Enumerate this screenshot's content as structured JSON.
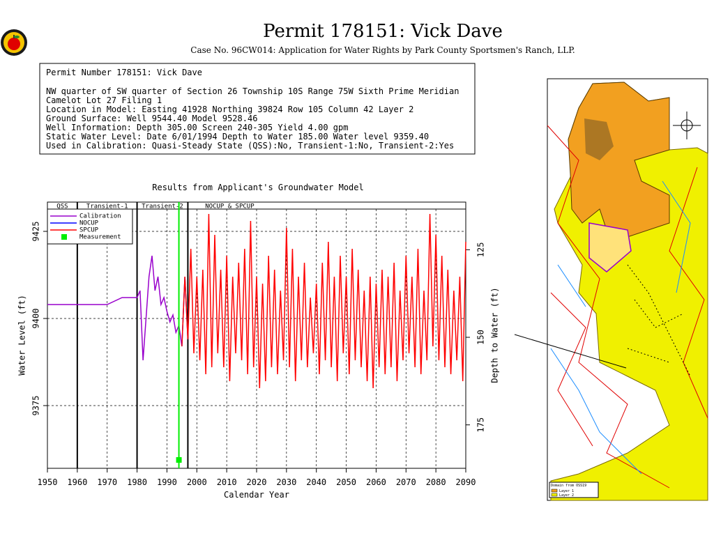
{
  "header": {
    "title": "Permit 178151:   Vick Dave",
    "subtitle": "Case No. 96CW014: Application for Water Rights by Park County Sportsmen's Ranch, LLP."
  },
  "info": {
    "lines": [
      "Permit Number 178151: Vick Dave",
      "NW quarter of SW quarter of Section 26 Township 10S Range 75W Sixth Prime Meridian",
      "Camelot Lot 27 Filing 1",
      "Location in Model: Easting 41928 Northing  39824 Row 105 Column 42 Layer 2",
      "Ground Surface: Well  9544.40 Model  9528.46",
      "Well Information: Depth   305.00 Screen 240-305 Yield     4.00 gpm",
      "Static Water Level: Date  6/01/1994 Depth to Water    185.00 Water level  9359.40",
      "Used in Calibration: Quasi-Steady State (QSS):No, Transient-1:No, Transient-2:Yes"
    ]
  },
  "map": {
    "legend": [
      "Domain from OSS19",
      "Layer 1",
      "Layer 2"
    ]
  },
  "chart_data": {
    "type": "line",
    "title": "Results from Applicant's Groundwater Model",
    "x_label": "Calendar Year",
    "y_label": "Water Level (ft)",
    "y2_label": "Depth to Water (ft)",
    "xlim": [
      1950,
      2090
    ],
    "xticks": [
      1950,
      1960,
      1970,
      1980,
      1990,
      2000,
      2010,
      2020,
      2030,
      2040,
      2050,
      2060,
      2070,
      2080,
      2090
    ],
    "ylim": [
      9357,
      9433.4
    ],
    "yticks": [
      9375,
      9400,
      9425
    ],
    "y2lim": [
      187.4,
      111.4
    ],
    "y2ticks": [
      125,
      150,
      175
    ],
    "grid": true,
    "periods": [
      {
        "label": "QSS",
        "start": 1950,
        "end": 1960
      },
      {
        "label": "Transient-1",
        "start": 1960,
        "end": 1980
      },
      {
        "label": "Transient-2",
        "start": 1980,
        "end": 1997
      },
      {
        "label": "NOCUP  &  SPCUP",
        "start": 1997,
        "end": 2090
      }
    ],
    "series": [
      {
        "name": "Calibration",
        "color": "#9900cc",
        "x": [
          1950,
          1960,
          1970,
          1975,
          1980,
          1981,
          1982,
          1983,
          1984,
          1985,
          1986,
          1987,
          1988,
          1989,
          1990,
          1991,
          1992,
          1993,
          1994,
          1995
        ],
        "values": [
          9404,
          9404,
          9404,
          9406,
          9406,
          9408,
          9388,
          9400,
          9412,
          9418,
          9408,
          9412,
          9404,
          9406,
          9402,
          9399,
          9401,
          9396,
          9398,
          9392
        ]
      },
      {
        "name": "NOCUP",
        "color": "#0000ff",
        "x": [
          1995,
          1996,
          1997
        ],
        "values": [
          9392,
          9412,
          9394
        ]
      },
      {
        "name": "SPCUP",
        "color": "#ff0000",
        "x": [
          1995,
          1996,
          1997,
          1998,
          1999,
          2000,
          2001,
          2002,
          2003,
          2004,
          2005,
          2006,
          2007,
          2008,
          2009,
          2010,
          2011,
          2012,
          2013,
          2014,
          2015,
          2016,
          2017,
          2018,
          2019,
          2020,
          2021,
          2022,
          2023,
          2024,
          2025,
          2026,
          2027,
          2028,
          2029,
          2030,
          2031,
          2032,
          2033,
          2034,
          2035,
          2036,
          2037,
          2038,
          2039,
          2040,
          2041,
          2042,
          2043,
          2044,
          2045,
          2046,
          2047,
          2048,
          2049,
          2050,
          2051,
          2052,
          2053,
          2054,
          2055,
          2056,
          2057,
          2058,
          2059,
          2060,
          2061,
          2062,
          2063,
          2064,
          2065,
          2066,
          2067,
          2068,
          2069,
          2070,
          2071,
          2072,
          2073,
          2074,
          2075,
          2076,
          2077,
          2078,
          2079,
          2080,
          2081,
          2082,
          2083,
          2084,
          2085,
          2086,
          2087,
          2088,
          2089,
          2090
        ],
        "values": [
          9392,
          9412,
          9394,
          9420,
          9390,
          9412,
          9388,
          9414,
          9384,
          9430,
          9386,
          9424,
          9390,
          9414,
          9386,
          9418,
          9382,
          9412,
          9390,
          9416,
          9388,
          9420,
          9384,
          9428,
          9386,
          9412,
          9380,
          9410,
          9382,
          9418,
          9386,
          9414,
          9384,
          9408,
          9388,
          9426,
          9386,
          9420,
          9382,
          9412,
          9388,
          9416,
          9386,
          9406,
          9390,
          9410,
          9384,
          9416,
          9388,
          9422,
          9386,
          9412,
          9382,
          9418,
          9390,
          9412,
          9384,
          9420,
          9388,
          9414,
          9386,
          9408,
          9382,
          9412,
          9380,
          9410,
          9386,
          9414,
          9384,
          9412,
          9386,
          9416,
          9382,
          9408,
          9388,
          9418,
          9390,
          9412,
          9386,
          9420,
          9384,
          9408,
          9388,
          9430,
          9392,
          9424,
          9388,
          9418,
          9386,
          9414,
          9384,
          9408,
          9388,
          9412,
          9382,
          9422
        ]
      },
      {
        "name": "Measurement",
        "color": "#00ee00",
        "marker": true,
        "x": [
          1994
        ],
        "values": [
          9359.4
        ]
      }
    ]
  }
}
